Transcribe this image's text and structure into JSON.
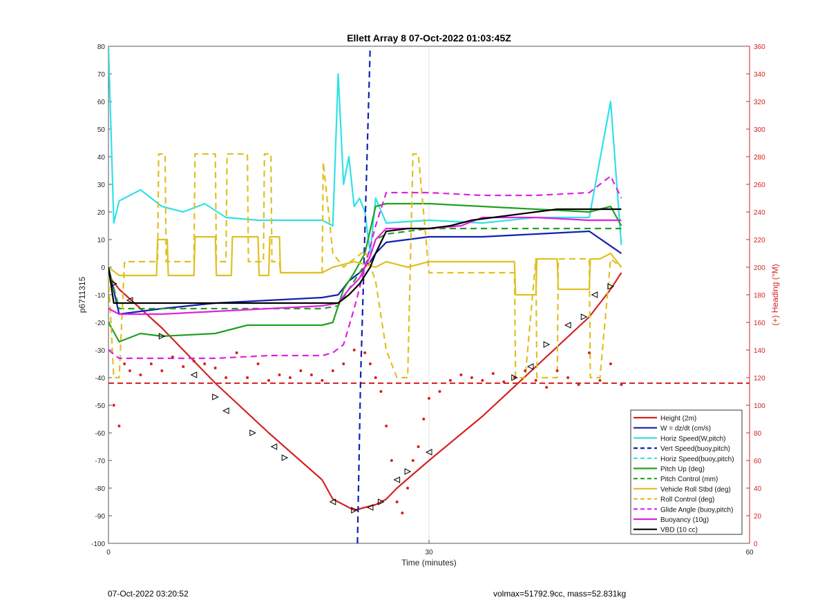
{
  "chart_data": {
    "type": "line",
    "title": "Ellett Array 8 07-Oct-2022 01:03:45Z",
    "xlabel": "Time (minutes)",
    "ylabel": "p6711315",
    "y2label": "(+) Heading (°M)",
    "xlim": [
      0,
      60
    ],
    "ylim": [
      -100,
      80
    ],
    "y2lim": [
      0,
      360
    ],
    "xticks": [
      0,
      30,
      60
    ],
    "yticks": [
      -100,
      -90,
      -80,
      -70,
      -60,
      -50,
      -40,
      -30,
      -20,
      -10,
      0,
      10,
      20,
      30,
      40,
      50,
      60,
      70,
      80
    ],
    "y2ticks": [
      0,
      20,
      40,
      60,
      80,
      100,
      120,
      140,
      160,
      180,
      200,
      220,
      240,
      260,
      280,
      300,
      320,
      340,
      360
    ],
    "grid": "x-only",
    "legend_position": "bottom-right",
    "colors": {
      "height": "#d62020",
      "w": "#1020b0",
      "horiz": "#30e0e8",
      "pitch": "#20a020",
      "roll": "#e0c020",
      "glide": "#e020e0",
      "buoy": "#e020e0",
      "vbd": "#000000",
      "heading": "#d62020",
      "axis2": "#d62020"
    },
    "series": [
      {
        "name": "Height (2m)",
        "style": "solid",
        "color": "#d62020",
        "x": [
          0,
          1,
          5,
          10,
          15,
          20,
          21,
          22,
          23,
          24,
          25,
          26,
          27,
          30,
          35,
          40,
          45,
          47,
          48
        ],
        "y": [
          -3,
          -8,
          -22,
          -42,
          -60,
          -77,
          -84,
          -86,
          -88,
          -87,
          -86,
          -84,
          -80,
          -70,
          -54,
          -36,
          -18,
          -8,
          -2
        ]
      },
      {
        "name": "W = dz/dt (cm/s)",
        "style": "solid",
        "color": "#1020b0",
        "x": [
          0,
          1,
          5,
          10,
          15,
          20,
          21.5,
          22.5,
          23.5,
          24.5,
          25,
          26,
          30,
          35,
          40,
          45,
          48
        ],
        "y": [
          0,
          -17,
          -15,
          -13,
          -12,
          -11,
          -10,
          -5,
          -2,
          2,
          5,
          9,
          11,
          11,
          12,
          13,
          5
        ]
      },
      {
        "name": "Horiz Speed(W,pitch)",
        "style": "solid",
        "color": "#30e0e8",
        "x": [
          0,
          0.5,
          1,
          3,
          5,
          7,
          9,
          11,
          14,
          17,
          20,
          21,
          21.5,
          22,
          22.5,
          23,
          23.5,
          24,
          24.5,
          25,
          26,
          30,
          35,
          40,
          45,
          47,
          48
        ],
        "y": [
          80,
          16,
          24,
          28,
          22,
          20,
          23,
          18,
          17,
          17,
          17,
          15,
          70,
          30,
          40,
          22,
          25,
          20,
          5,
          25,
          16,
          17,
          16,
          18,
          18,
          60,
          8
        ]
      },
      {
        "name": "Vert Speed(buoy,pitch)",
        "style": "dashed",
        "color": "#1020b0",
        "x": [
          23.3,
          23.6,
          23.9,
          24.2,
          24.5
        ],
        "y": [
          -100,
          -40,
          0,
          40,
          80
        ]
      },
      {
        "name": "Horiz Speed(buoy,pitch)",
        "style": "dashed",
        "color": "#30e0e8",
        "x": [],
        "y": []
      },
      {
        "name": "Pitch Up (deg)",
        "style": "solid",
        "color": "#20a020",
        "x": [
          0,
          1,
          3,
          5,
          10,
          13,
          20,
          21,
          22,
          23,
          24,
          25,
          26,
          30,
          35,
          40,
          45,
          47,
          48
        ],
        "y": [
          -20,
          -27,
          -24,
          -25,
          -24,
          -21,
          -21,
          -20,
          -8,
          -2,
          5,
          22,
          23,
          23,
          22,
          21,
          20,
          22,
          15
        ]
      },
      {
        "name": "Pitch Control (mm)",
        "style": "dashed",
        "color": "#20a020",
        "x": [
          0,
          1,
          20,
          21.5,
          23,
          24.5,
          25,
          26,
          30,
          48
        ],
        "y": [
          0,
          -15,
          -15,
          -14,
          -5,
          4,
          10,
          12,
          14,
          14
        ]
      },
      {
        "name": "Vehicle Roll Stbd (deg)",
        "style": "solid",
        "color": "#e0c020",
        "x": [
          0,
          1,
          4.5,
          4.6,
          5.5,
          5.6,
          8,
          8.1,
          10,
          10.1,
          11.5,
          11.6,
          14,
          14.1,
          15,
          15.1,
          16,
          16.1,
          20,
          21,
          23,
          25,
          26,
          28,
          30,
          38,
          38.1,
          40,
          40.1,
          42,
          42.1,
          45,
          45.1,
          46,
          47,
          48
        ],
        "y": [
          0,
          -3,
          -3,
          10,
          10,
          -3,
          -3,
          11,
          11,
          -3,
          -3,
          11,
          11,
          -3,
          -3,
          11,
          11,
          -2,
          -2,
          0,
          2,
          0,
          2,
          0,
          2,
          2,
          -10,
          -10,
          3,
          3,
          -8,
          -8,
          3,
          3,
          5,
          0
        ]
      },
      {
        "name": "Roll Control (deg)",
        "style": "dashed",
        "color": "#e0c020",
        "x": [
          0,
          0.5,
          1,
          1.5,
          2,
          4.6,
          4.7,
          5.3,
          5.4,
          8,
          8.1,
          10,
          10.1,
          11,
          11.1,
          13,
          13.1,
          14.5,
          14.6,
          15.2,
          15.3,
          16,
          16.1,
          20,
          20.1,
          21,
          22,
          24,
          25,
          26,
          27,
          28,
          28.5,
          29,
          30,
          38,
          38.1,
          39,
          40,
          40.1,
          42,
          42.1,
          45,
          45.1,
          46,
          47,
          48
        ],
        "y": [
          -3,
          -40,
          -40,
          2,
          2,
          2,
          41,
          41,
          2,
          2,
          41,
          41,
          2,
          2,
          41,
          41,
          2,
          2,
          41,
          41,
          2,
          2,
          -2,
          -2,
          38,
          5,
          0,
          6,
          -5,
          -30,
          -40,
          -40,
          41,
          41,
          -2,
          -2,
          -40,
          -40,
          3,
          -40,
          -40,
          3,
          3,
          -40,
          -40,
          3,
          0
        ]
      },
      {
        "name": "Glide Angle (buoy,pitch)",
        "style": "dashed",
        "color": "#e020e0",
        "x": [
          0,
          1,
          5,
          10,
          15,
          20,
          21,
          22,
          23,
          24,
          25,
          26,
          30,
          35,
          40,
          45,
          47,
          48
        ],
        "y": [
          -30,
          -33,
          -33,
          -33,
          -32,
          -32,
          -31,
          -28,
          -15,
          0,
          15,
          27,
          27,
          26,
          26,
          27,
          33,
          25
        ]
      },
      {
        "name": "Buoyancy (10g)",
        "style": "solid",
        "color": "#e020e0",
        "x": [
          0,
          1,
          5,
          10,
          15,
          20,
          21.5,
          22.5,
          23.5,
          24.5,
          25,
          26,
          30,
          33,
          35,
          40,
          45,
          48
        ],
        "y": [
          -15,
          -17,
          -17,
          -16,
          -15,
          -14,
          -13,
          -8,
          -4,
          4,
          10,
          14,
          14,
          15,
          18,
          18,
          17,
          17
        ]
      },
      {
        "name": "VBD (10 cc)",
        "style": "solid",
        "color": "#000000",
        "x": [
          0,
          0.5,
          1,
          21.5,
          22.5,
          23.5,
          24.5,
          25,
          26,
          28,
          30,
          32,
          34,
          36,
          38,
          40,
          42,
          45,
          48
        ],
        "y": [
          0,
          -13,
          -13,
          -13,
          -10,
          -6,
          0,
          5,
          13,
          14,
          14,
          15,
          17,
          18,
          19,
          20,
          21,
          21,
          21
        ]
      }
    ],
    "heading_reference": {
      "name": "",
      "axis": "right",
      "style": "dashed",
      "color": "#d62020",
      "value": 116
    },
    "heading_points": {
      "axis": "right",
      "x": [
        0.5,
        1,
        1.5,
        2,
        3,
        4,
        5,
        6,
        7,
        8,
        9,
        10,
        11,
        12,
        13,
        14,
        15,
        16,
        17,
        18,
        19,
        20,
        21,
        22,
        23,
        24,
        24.5,
        25,
        25.5,
        26,
        26.5,
        27,
        27.5,
        28,
        28.5,
        29,
        29.5,
        30,
        31,
        32,
        33,
        34,
        35,
        36,
        37,
        38,
        39,
        40,
        41,
        42,
        43,
        44,
        45,
        46,
        47,
        48
      ],
      "y": [
        100,
        85,
        130,
        125,
        122,
        130,
        125,
        135,
        128,
        132,
        130,
        127,
        120,
        138,
        120,
        130,
        118,
        122,
        120,
        125,
        122,
        118,
        125,
        130,
        140,
        138,
        130,
        120,
        110,
        85,
        60,
        30,
        22,
        40,
        60,
        70,
        90,
        105,
        110,
        118,
        122,
        120,
        118,
        123,
        117,
        120,
        125,
        118,
        113,
        125,
        120,
        115,
        138,
        118,
        130,
        115
      ]
    },
    "markers": {
      "shape": "triangle",
      "x": [
        0.5,
        2,
        5,
        8,
        10,
        11,
        13.5,
        15.5,
        16.5,
        21,
        23,
        24.5,
        25.5,
        27,
        28,
        30,
        38,
        39.5,
        41,
        43,
        44.5,
        45.5,
        47
      ],
      "y": [
        -6,
        -12,
        -25,
        -39,
        -47,
        -52,
        -60,
        -65,
        -69,
        -85,
        -88,
        -87,
        -85,
        -77,
        -74,
        -67,
        -40,
        -36,
        -28,
        -21,
        -18,
        -10,
        -7
      ]
    }
  },
  "footer": {
    "left": "07-Oct-2022 03:20:52",
    "right": "volmax=51792.9cc, mass=52.831kg"
  }
}
